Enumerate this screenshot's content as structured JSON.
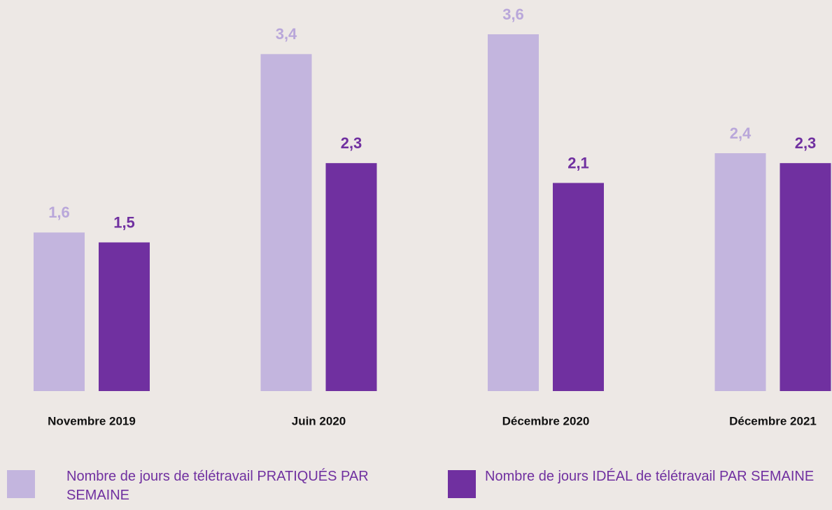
{
  "chart_data": {
    "type": "bar",
    "categories": [
      "Novembre 2019",
      "Juin 2020",
      "Décembre 2020",
      "Décembre 2021"
    ],
    "series": [
      {
        "name": "Nombre de jours de télétravail PRATIQUÉS PAR SEMAINE",
        "color": "#c3b5de",
        "label_color": "#b9a7da",
        "values": [
          1.6,
          3.4,
          3.6,
          2.4
        ],
        "value_labels": [
          "1,6",
          "3,4",
          "3,6",
          "2,4"
        ]
      },
      {
        "name": "Nombre de jours IDÉAL de télétravail PAR SEMAINE",
        "color": "#7030a0",
        "label_color": "#7030a0",
        "values": [
          1.5,
          2.3,
          2.1,
          2.3
        ],
        "value_labels": [
          "1,5",
          "2,3",
          "2,1",
          "2,3"
        ]
      }
    ],
    "ylim": [
      0,
      3.6
    ]
  }
}
